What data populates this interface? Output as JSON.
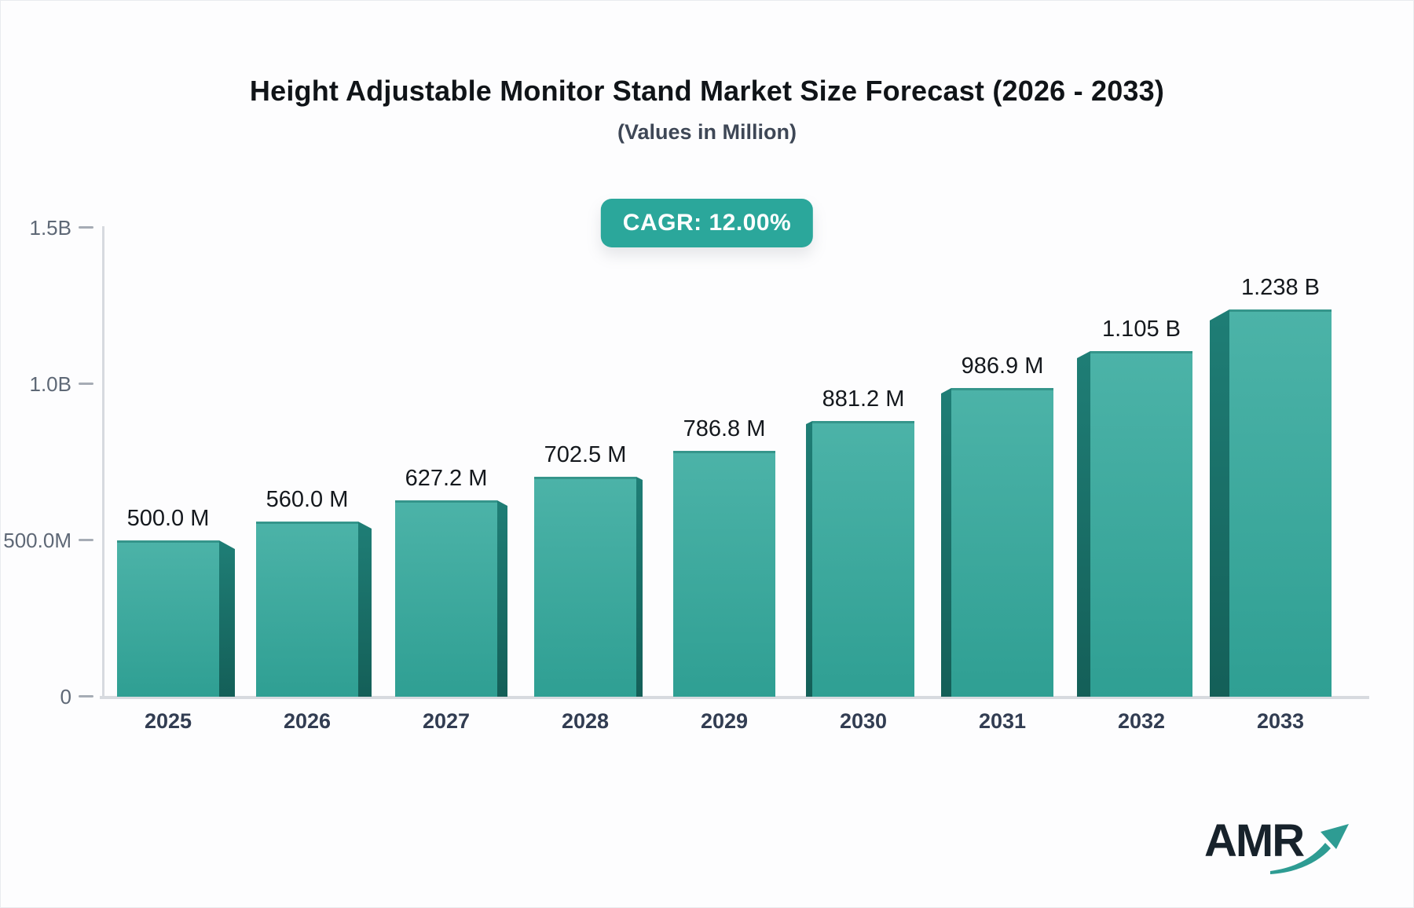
{
  "page": {
    "title": "Height Adjustable Monitor Stand Market Size Forecast (2026 - 2033)",
    "subtitle": "(Values in Million)",
    "badge": "CAGR: 12.00%",
    "logo_text": "AMR"
  },
  "colors": {
    "badge_bg": "#2BA79B",
    "bar_front_top": "#4CB3A8",
    "bar_front_bottom": "#2F9F93",
    "bar_side_top": "#1F7E76",
    "bar_side_bottom": "#145F58",
    "axis_line": "#D7DADF",
    "tick_dash": "#A6ACB5",
    "y_label": "#5E6876",
    "x_label": "#323D52",
    "value_label": "#14181D",
    "title": "#101418",
    "subtitle": "#3E4756",
    "logo_navy": "#17222B",
    "logo_arrow_teal": "#2E9C93"
  },
  "chart_data": {
    "type": "bar",
    "title": "Height Adjustable Monitor Stand Market Size Forecast (2026 - 2033)",
    "subtitle": "(Values in Million)",
    "unit": "Million",
    "cagr": "12.00%",
    "categories": [
      "2025",
      "2026",
      "2027",
      "2028",
      "2029",
      "2030",
      "2031",
      "2032",
      "2033"
    ],
    "values": [
      500.0,
      560.0,
      627.2,
      702.5,
      786.8,
      881.2,
      986.9,
      1105.0,
      1238.0
    ],
    "bar_labels": [
      "500.0 M",
      "560.0 M",
      "627.2 M",
      "702.5 M",
      "786.8 M",
      "881.2 M",
      "986.9 M",
      "1.105 B",
      "1.238 B"
    ],
    "y_ticks": [
      {
        "label": "1.5B",
        "value": 1500
      },
      {
        "label": "1.0B",
        "value": 1000
      },
      {
        "label": "500.0M",
        "value": 500
      },
      {
        "label": "0",
        "value": 0
      }
    ],
    "ylim": [
      0,
      1500
    ],
    "xlabel": "",
    "ylabel": "",
    "grid": false,
    "legend": false
  }
}
